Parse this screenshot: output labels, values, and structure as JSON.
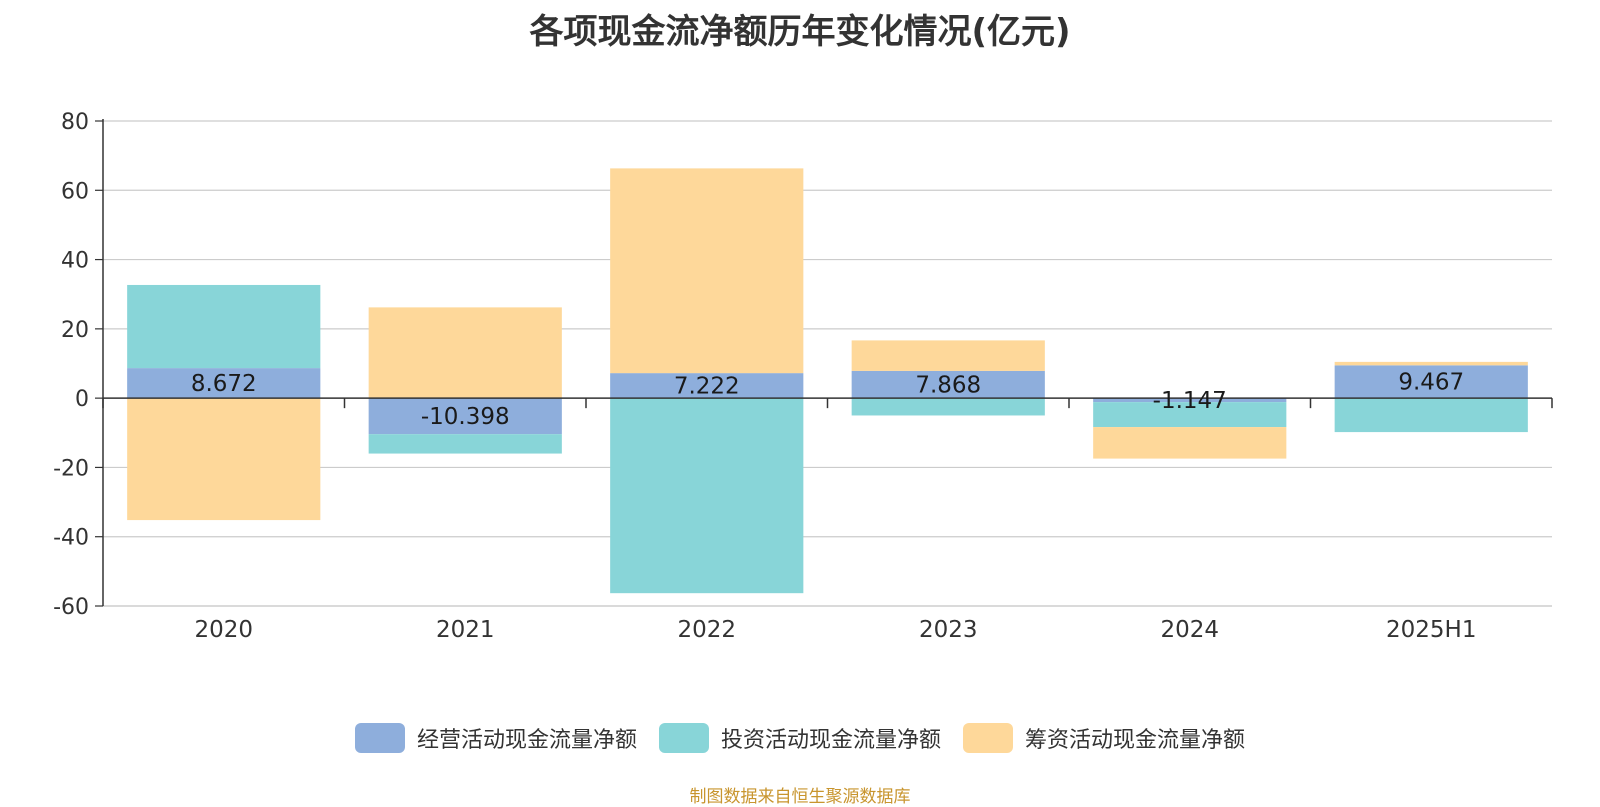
{
  "chart_data": {
    "type": "bar",
    "stacked": true,
    "title": "各项现金流净额历年变化情况(亿元)",
    "categories": [
      "2020",
      "2021",
      "2022",
      "2023",
      "2024",
      "2025H1"
    ],
    "series": [
      {
        "name": "经营活动现金流量净额",
        "color": "#8eaedc",
        "values": [
          8.672,
          -10.398,
          7.222,
          7.868,
          -1.147,
          9.467
        ],
        "show_labels": true
      },
      {
        "name": "投资活动现金流量净额",
        "color": "#88d5d8",
        "values": [
          24.0,
          -5.6,
          -56.3,
          -5.0,
          -7.2,
          -9.8
        ]
      },
      {
        "name": "筹资活动现金流量净额",
        "color": "#fed89a",
        "values": [
          -35.2,
          26.2,
          59.1,
          8.8,
          -9.1,
          1.0
        ]
      }
    ],
    "data_labels": [
      "8.672",
      "-10.398",
      "7.222",
      "7.868",
      "-1.147",
      "9.467"
    ],
    "ylim": [
      -60,
      80
    ],
    "yticks": [
      80,
      60,
      40,
      20,
      0,
      -20,
      -40,
      -60
    ],
    "grid": true,
    "legend_position": "bottom"
  },
  "source_text": "制图数据来自恒生聚源数据库"
}
